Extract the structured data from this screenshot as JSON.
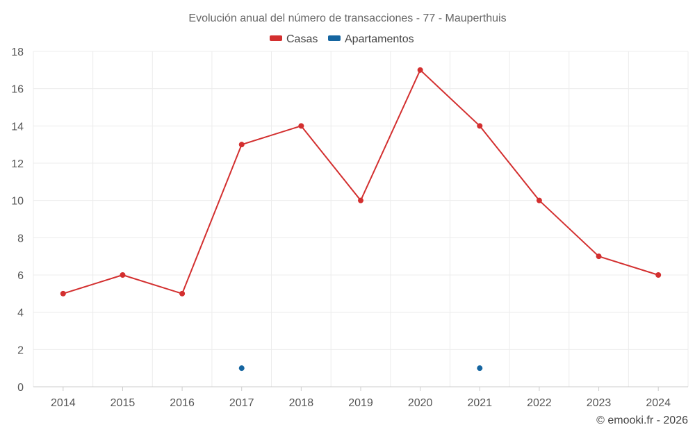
{
  "chart_data": {
    "type": "line",
    "title": "Evolución anual del número de transacciones - 77 - Mauperthuis",
    "categories": [
      "2014",
      "2015",
      "2016",
      "2017",
      "2018",
      "2019",
      "2020",
      "2021",
      "2022",
      "2023",
      "2024"
    ],
    "series": [
      {
        "name": "Casas",
        "color": "#d32f2f",
        "values": [
          5,
          6,
          5,
          13,
          14,
          10,
          17,
          14,
          10,
          7,
          6
        ]
      },
      {
        "name": "Apartamentos",
        "color": "#1565a0",
        "values": [
          null,
          null,
          null,
          1,
          null,
          null,
          null,
          1,
          null,
          null,
          null
        ]
      }
    ],
    "ylim": [
      0,
      18
    ],
    "yticks": [
      0,
      2,
      4,
      6,
      8,
      10,
      12,
      14,
      16,
      18
    ],
    "xlabel": "",
    "ylabel": "",
    "grid": true,
    "legend_position": "top-center"
  },
  "credit": "© emooki.fr - 2026"
}
